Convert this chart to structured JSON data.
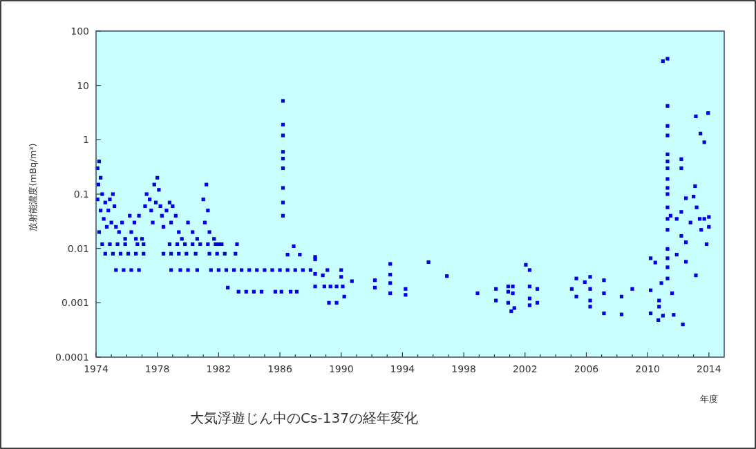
{
  "chart_data": {
    "type": "scatter",
    "title": "大気浮遊じん中のCs-137の経年変化",
    "xlabel": "年度",
    "ylabel": "放射能濃度(mBq/m³)",
    "log": true,
    "grid": false,
    "marker": "square",
    "xlim": [
      1974,
      2015
    ],
    "ylim": [
      0.0001,
      100
    ],
    "xticks": [
      1974,
      {
        "value": 1975,
        "label": null
      },
      {
        "value": 1976,
        "label": null
      },
      {
        "value": 1977,
        "label": null
      },
      1978,
      {
        "value": 1979,
        "label": null
      },
      {
        "value": 1980,
        "label": null
      },
      {
        "value": 1981,
        "label": null
      },
      1982,
      {
        "value": 1983,
        "label": null
      },
      {
        "value": 1984,
        "label": null
      },
      {
        "value": 1985,
        "label": null
      },
      1986,
      {
        "value": 1987,
        "label": null
      },
      {
        "value": 1988,
        "label": null
      },
      {
        "value": 1989,
        "label": null
      },
      1990,
      {
        "value": 1991,
        "label": null
      },
      {
        "value": 1992,
        "label": null
      },
      {
        "value": 1993,
        "label": null
      },
      1994,
      {
        "value": 1995,
        "label": null
      },
      {
        "value": 1996,
        "label": null
      },
      {
        "value": 1997,
        "label": null
      },
      1998,
      {
        "value": 1999,
        "label": null
      },
      {
        "value": 2000,
        "label": null
      },
      {
        "value": 2001,
        "label": null
      },
      2002,
      {
        "value": 2003,
        "label": null
      },
      {
        "value": 2004,
        "label": null
      },
      {
        "value": 2005,
        "label": null
      },
      2006,
      {
        "value": 2007,
        "label": null
      },
      {
        "value": 2008,
        "label": null
      },
      {
        "value": 2009,
        "label": null
      },
      2010,
      {
        "value": 2011,
        "label": null
      },
      {
        "value": 2012,
        "label": null
      },
      {
        "value": 2013,
        "label": null
      },
      2014
    ],
    "yticks": [
      {
        "value": 0.0001,
        "label": "0.0001"
      },
      {
        "value": 0.001,
        "label": "0.001"
      },
      {
        "value": 0.01,
        "label": "0.01"
      },
      {
        "value": 0.1,
        "label": "0.1"
      },
      {
        "value": 1,
        "label": "1"
      },
      {
        "value": 10,
        "label": "10"
      },
      {
        "value": 100,
        "label": "100"
      }
    ],
    "series": [
      {
        "color": "#0000e6",
        "x": [
          1974.1,
          1974.2,
          1974.15,
          1974.3,
          1974.1,
          1974.4,
          1974.3,
          1974.6,
          1974.5,
          1974.8,
          1974.9,
          1975.1,
          1975.2,
          1974.7,
          1975.0,
          1975.3,
          1974.2,
          1975.5,
          1975.7,
          1975.9,
          1976.2,
          1976.5,
          1976.3,
          1976.8,
          1976.6,
          1977.0,
          1977.2,
          1977.3,
          1977.5,
          1977.6,
          1977.8,
          1978.0,
          1978.1,
          1977.9,
          1978.2,
          1977.7,
          1978.3,
          1978.4,
          1978.6,
          1978.8,
          1979.0,
          1978.9,
          1979.2,
          1979.4,
          1979.6,
          1980.0,
          1980.3,
          1980.6,
          1981.0,
          1981.2,
          1981.3,
          1981.1,
          1981.4,
          1981.7,
          1982.0,
          1974.4,
          1974.9,
          1975.4,
          1975.9,
          1976.7,
          1977.1,
          1978.8,
          1979.3,
          1979.8,
          1980.3,
          1980.8,
          1981.3,
          1981.8,
          1982.2,
          1983.2,
          1974.6,
          1975.1,
          1975.6,
          1976.1,
          1976.6,
          1977.1,
          1978.4,
          1978.9,
          1979.4,
          1979.9,
          1980.5,
          1981.4,
          1981.9,
          1982.4,
          1983.1,
          1975.3,
          1975.8,
          1976.3,
          1976.8,
          1978.9,
          1979.5,
          1980.0,
          1980.6,
          1981.5,
          1982.0,
          1982.5,
          1983.0,
          1983.5,
          1984.0,
          1984.5,
          1985.0,
          1985.5,
          1986.0,
          1986.5,
          1987.0,
          1987.5,
          1988.0,
          1982.6,
          1983.3,
          1983.8,
          1984.3,
          1984.8,
          1985.7,
          1986.1,
          1986.7,
          1987.1,
          1986.2,
          1986.2,
          1986.2,
          1986.2,
          1986.2,
          1986.2,
          1986.2,
          1986.2,
          1986.2,
          1986.9,
          1986.5,
          1987.3,
          1988.3,
          1988.3,
          1988.3,
          1988.3,
          1988.8,
          1989.1,
          1988.9,
          1989.3,
          1989.7,
          1989.2,
          1989.7,
          1990.0,
          1990.0,
          1990.1,
          1990.2,
          1990.7,
          1992.2,
          1992.2,
          1993.2,
          1993.2,
          1993.2,
          1993.2,
          1994.2,
          1994.2,
          1995.7,
          1996.9,
          1998.9,
          2000.1,
          2000.1,
          2000.9,
          2000.9,
          2000.9,
          2001.1,
          2001.2,
          2001.2,
          2001.3,
          2002.05,
          2002.3,
          2002.3,
          2002.3,
          2002.3,
          2002.8,
          2002.8,
          2005.05,
          2005.35,
          2005.35,
          2005.9,
          2006.25,
          2006.25,
          2006.25,
          2006.25,
          2007.15,
          2007.15,
          2007.15,
          2008.3,
          2008.3,
          2009.0,
          2010.2,
          2010.5,
          2010.2,
          2010.2,
          2010.7,
          2011.0,
          2010.75,
          2010.75,
          2010.9,
          2011.0,
          2011.3,
          2011.3,
          2011.3,
          2011.3,
          2011.3,
          2011.3,
          2011.3,
          2011.3,
          2011.3,
          2011.3,
          2011.3,
          2011.3,
          2011.3,
          2011.3,
          2011.3,
          2011.3,
          2011.3,
          2011.6,
          2011.7,
          2012.3,
          2012.2,
          2012.2,
          2011.9,
          2012.5,
          2011.9,
          2012.2,
          2012.5,
          2012.8,
          2012.5,
          2013.1,
          2013.0,
          2013.2,
          2013.15,
          2013.15,
          2013.45,
          2013.7,
          2013.95,
          2013.7,
          2014.0,
          2013.85,
          2013.5,
          2014.0,
          2011.5,
          2013.4,
          2012.2
        ],
        "values": [
          0.3,
          0.4,
          0.15,
          0.2,
          0.08,
          0.1,
          0.05,
          0.07,
          0.035,
          0.05,
          0.08,
          0.1,
          0.06,
          0.025,
          0.03,
          0.025,
          0.02,
          0.02,
          0.03,
          0.015,
          0.04,
          0.03,
          0.02,
          0.04,
          0.015,
          0.015,
          0.06,
          0.1,
          0.08,
          0.05,
          0.15,
          0.2,
          0.12,
          0.07,
          0.06,
          0.03,
          0.04,
          0.025,
          0.05,
          0.07,
          0.06,
          0.03,
          0.04,
          0.02,
          0.015,
          0.03,
          0.02,
          0.015,
          0.08,
          0.15,
          0.05,
          0.03,
          0.02,
          0.015,
          0.012,
          0.012,
          0.012,
          0.012,
          0.012,
          0.012,
          0.012,
          0.012,
          0.012,
          0.012,
          0.012,
          0.012,
          0.012,
          0.012,
          0.012,
          0.012,
          0.008,
          0.008,
          0.008,
          0.008,
          0.008,
          0.008,
          0.008,
          0.008,
          0.008,
          0.008,
          0.008,
          0.008,
          0.008,
          0.008,
          0.008,
          0.004,
          0.004,
          0.004,
          0.004,
          0.004,
          0.004,
          0.004,
          0.004,
          0.004,
          0.004,
          0.004,
          0.004,
          0.004,
          0.004,
          0.004,
          0.004,
          0.004,
          0.004,
          0.004,
          0.004,
          0.004,
          0.004,
          0.0019,
          0.0016,
          0.0016,
          0.0016,
          0.0016,
          0.0016,
          0.0016,
          0.0016,
          0.0016,
          5.2,
          1.9,
          1.2,
          0.6,
          0.45,
          0.3,
          0.13,
          0.07,
          0.04,
          0.011,
          0.0077,
          0.0077,
          0.007,
          0.0063,
          0.0034,
          0.002,
          0.0032,
          0.004,
          0.002,
          0.002,
          0.002,
          0.001,
          0.001,
          0.004,
          0.003,
          0.002,
          0.0013,
          0.0025,
          0.0026,
          0.0019,
          0.0052,
          0.0033,
          0.0023,
          0.0015,
          0.0018,
          0.0014,
          0.0056,
          0.0031,
          0.0015,
          0.0018,
          0.0011,
          0.002,
          0.0016,
          0.001,
          0.0007,
          0.002,
          0.0015,
          0.0008,
          0.005,
          0.004,
          0.002,
          0.0012,
          0.0009,
          0.0018,
          0.001,
          0.0018,
          0.0028,
          0.0013,
          0.0024,
          0.003,
          0.0018,
          0.0011,
          0.00085,
          0.0026,
          0.0015,
          0.00064,
          0.0013,
          0.00061,
          0.0018,
          0.0066,
          0.0055,
          0.0017,
          0.00064,
          0.00048,
          0.00058,
          0.0011,
          0.00085,
          0.0023,
          28,
          31,
          4.2,
          1.8,
          1.2,
          0.54,
          0.4,
          0.3,
          0.19,
          0.13,
          0.1,
          0.057,
          0.035,
          0.022,
          0.0098,
          0.0066,
          0.0045,
          0.0028,
          0.0015,
          0.0006,
          0.0004,
          0.44,
          0.3,
          0.0077,
          0.0057,
          0.035,
          0.047,
          0.084,
          0.03,
          0.013,
          0.14,
          0.09,
          0.057,
          0.0032,
          2.7,
          1.3,
          0.9,
          3.1,
          0.035,
          0.038,
          0.012,
          0.022,
          0.025,
          0.04,
          0.035,
          0.017
        ]
      }
    ]
  }
}
